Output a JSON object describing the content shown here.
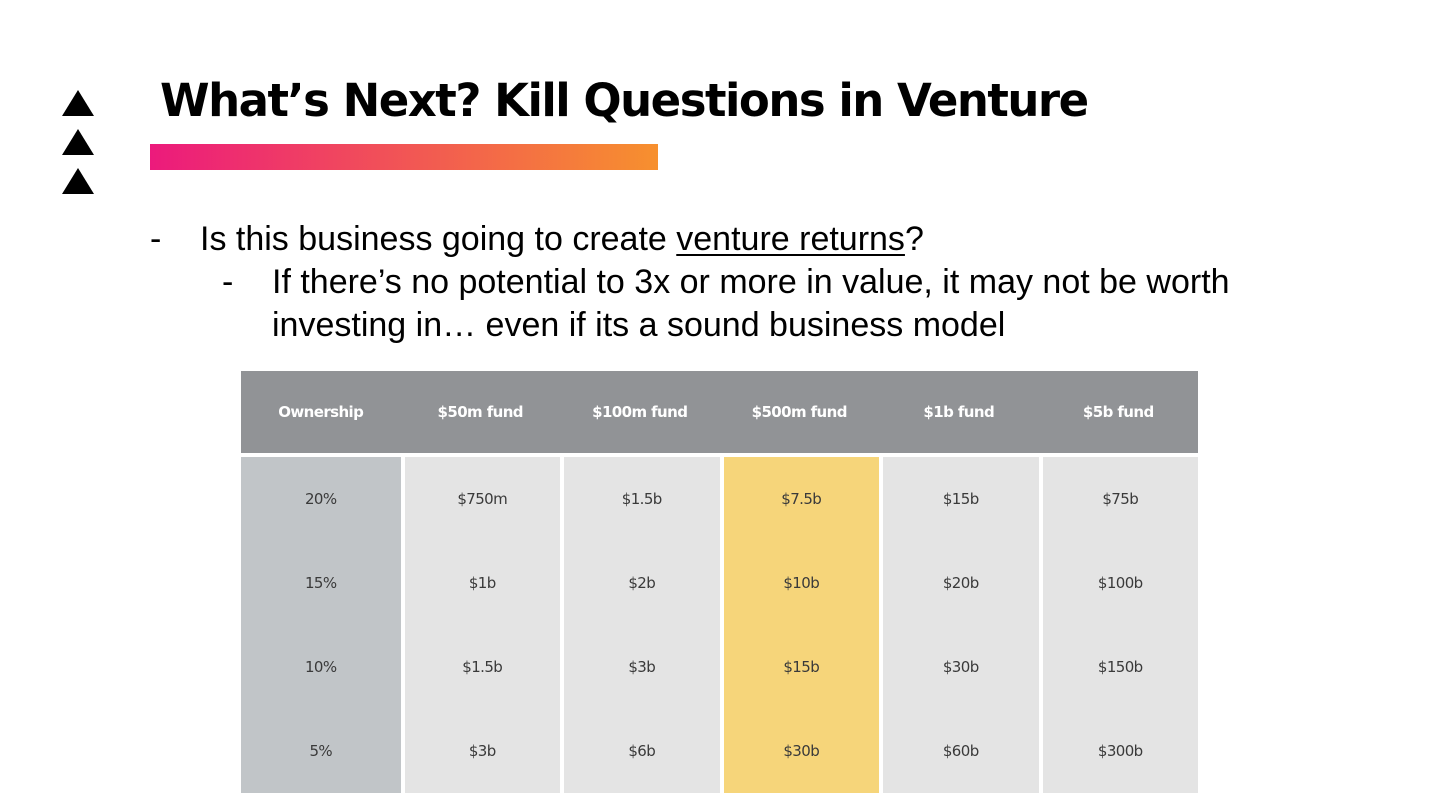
{
  "slide": {
    "title": "What’s Next? Kill Questions in Venture",
    "bullet1": {
      "dash": "-",
      "prefix": "Is this business going to create ",
      "underlined": "venture returns",
      "suffix": "?"
    },
    "bullet2": {
      "dash": "-",
      "text": "If there’s no potential to 3x or more in value, it may not be worth investing in… even if its a sound business model"
    }
  },
  "table": {
    "headers": [
      "Ownership",
      "$50m fund",
      "$100m fund",
      "$500m fund",
      "$1b fund",
      "$5b fund"
    ],
    "rows": [
      [
        "20%",
        "$750m",
        "$1.5b",
        "$7.5b",
        "$15b",
        "$75b"
      ],
      [
        "15%",
        "$1b",
        "$2b",
        "$10b",
        "$20b",
        "$100b"
      ],
      [
        "10%",
        "$1.5b",
        "$3b",
        "$15b",
        "$30b",
        "$150b"
      ],
      [
        "5%",
        "$3b",
        "$6b",
        "$30b",
        "$60b",
        "$300b"
      ]
    ],
    "highlight_column": 3,
    "colors": {
      "header": "#919396",
      "ownership_col": "#c1c5c8",
      "cell": "#e4e4e4",
      "highlight": "#f6d57a"
    }
  },
  "icons": [
    "triangle-up-icon",
    "triangle-up-icon",
    "triangle-up-icon"
  ],
  "accent_gradient": [
    "#ec1a7c",
    "#f7902e"
  ]
}
